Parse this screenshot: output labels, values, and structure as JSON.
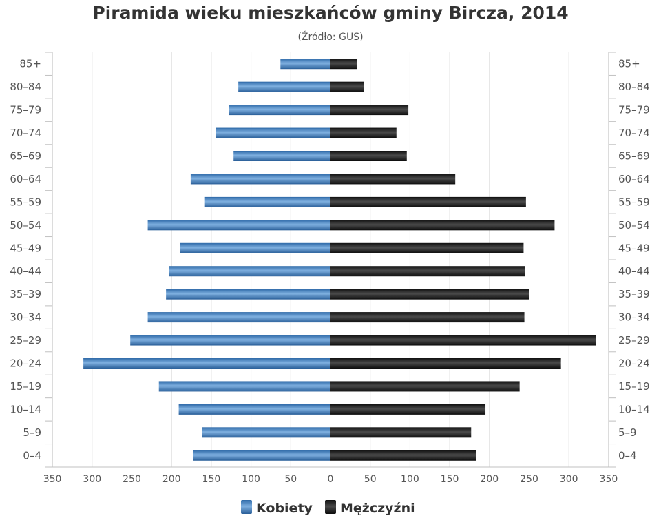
{
  "chart_data": {
    "type": "bar",
    "orientation": "horizontal-population-pyramid",
    "title": "Piramida wieku mieszkańców gminy Bircza, 2014",
    "subtitle": "(Źródło: GUS)",
    "categories": [
      "85+",
      "80-84",
      "75-79",
      "70-74",
      "65-69",
      "60-64",
      "55-59",
      "50-54",
      "45-49",
      "40-44",
      "35-39",
      "30-34",
      "25-29",
      "20-24",
      "15-19",
      "10-14",
      "5-9",
      "0-4"
    ],
    "category_labels": [
      "85+",
      "80–84",
      "75–79",
      "70–74",
      "65–69",
      "60–64",
      "55–59",
      "50–54",
      "45–49",
      "40–44",
      "35–39",
      "30–34",
      "25–29",
      "20–24",
      "15–19",
      "10–14",
      "5–9",
      "0–4"
    ],
    "series": [
      {
        "name": "Kobiety",
        "side": "left",
        "color": "#3e7dbd",
        "values": [
          63,
          116,
          128,
          144,
          122,
          176,
          158,
          230,
          189,
          203,
          207,
          230,
          252,
          311,
          216,
          191,
          162,
          173
        ]
      },
      {
        "name": "Mężczyźni",
        "side": "right",
        "color": "#222222",
        "values": [
          33,
          42,
          98,
          83,
          96,
          157,
          246,
          282,
          243,
          245,
          250,
          244,
          334,
          290,
          238,
          195,
          177,
          183
        ]
      }
    ],
    "xlim": [
      -350,
      350
    ],
    "x_ticks": [
      350,
      300,
      250,
      200,
      150,
      100,
      50,
      0,
      50,
      100,
      150,
      200,
      250,
      300,
      350
    ],
    "grid": true,
    "legend_position": "bottom-center"
  }
}
